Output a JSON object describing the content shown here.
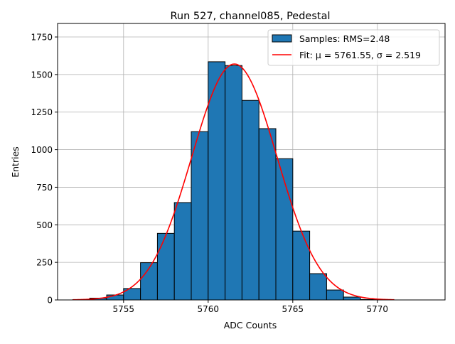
{
  "chart_data": {
    "type": "bar",
    "title": "Run 527, channel085, Pedestal",
    "xlabel": "ADC Counts",
    "ylabel": "Entries",
    "xlim": [
      5751.1,
      5774.0
    ],
    "ylim": [
      0,
      1840
    ],
    "xticks": [
      5755,
      5760,
      5765,
      5770
    ],
    "yticks": [
      0,
      250,
      500,
      750,
      1000,
      1250,
      1500,
      1750
    ],
    "ytick_labels": [
      "0",
      "250",
      "500",
      "750",
      "1000",
      "1250",
      "1500",
      "1750"
    ],
    "grid": true,
    "legend_position": "top-right",
    "bin_edges": [
      5752,
      5753,
      5754,
      5755,
      5756,
      5757,
      5758,
      5759,
      5760,
      5761,
      5762,
      5763,
      5764,
      5765,
      5766,
      5767,
      5768,
      5769,
      5770
    ],
    "values": [
      2,
      12,
      33,
      76,
      248,
      443,
      648,
      1120,
      1585,
      1560,
      1328,
      1140,
      940,
      458,
      175,
      66,
      19,
      3
    ],
    "series": [
      {
        "name": "Samples: RMS=2.48",
        "type": "histogram",
        "color": "#1f77b4"
      },
      {
        "name": "Fit: μ = 5761.55, σ = 2.519",
        "type": "line",
        "color": "#ff0000",
        "mu": 5761.55,
        "sigma": 2.519,
        "amplitude": 1570,
        "x_range": [
          5752,
          5771
        ]
      }
    ]
  }
}
